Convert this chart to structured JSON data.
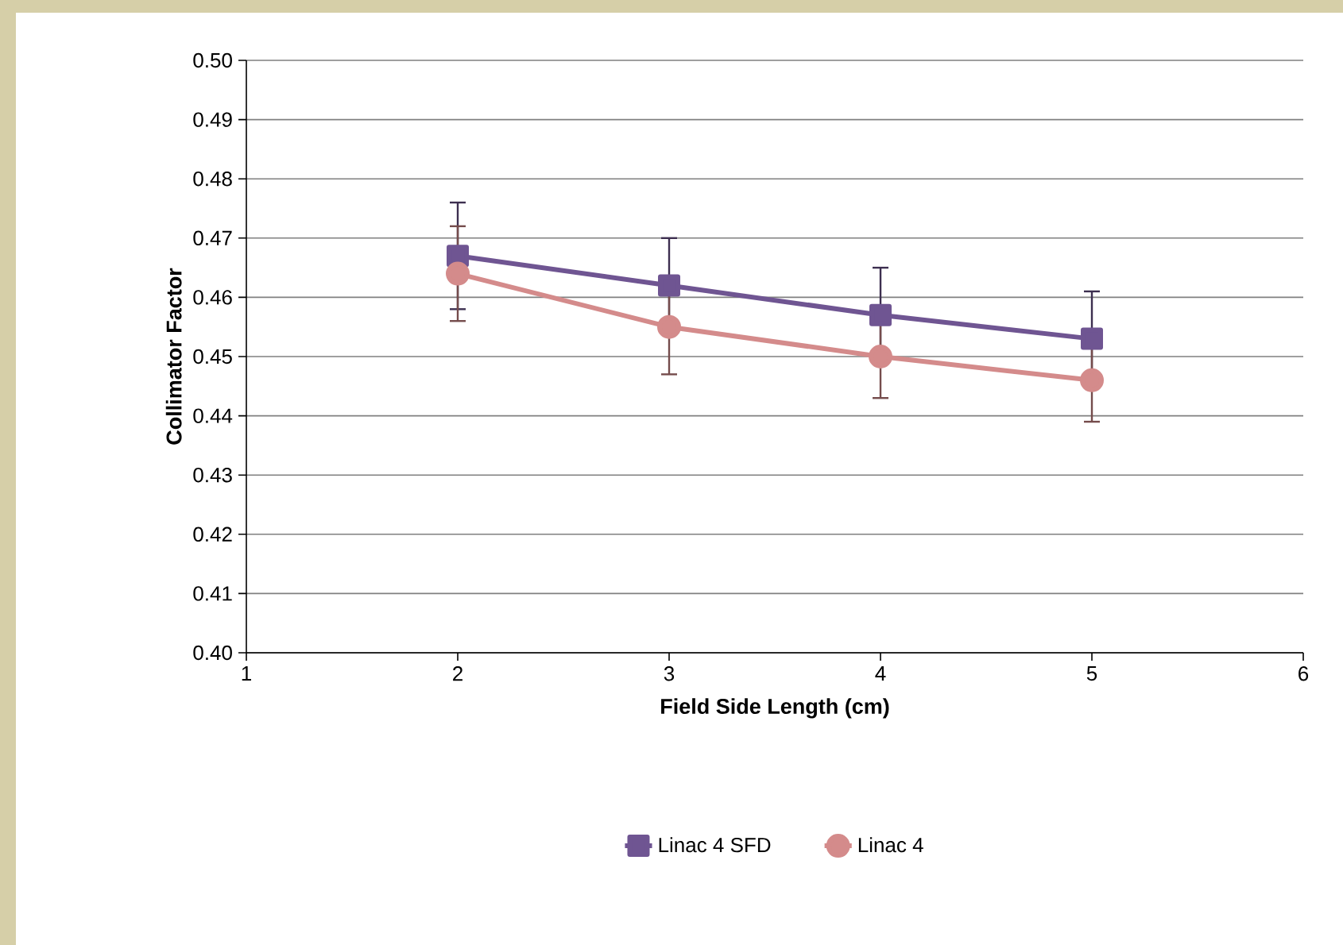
{
  "chart_data": {
    "type": "line",
    "xlabel": "Field Side Length (cm)",
    "ylabel": "Collimator Factor",
    "x": [
      2,
      3,
      4,
      5
    ],
    "series": [
      {
        "name": "Linac 4 SFD",
        "color": "#6f5592",
        "marker": "square",
        "values": [
          0.467,
          0.462,
          0.457,
          0.453
        ],
        "errors": [
          0.009,
          0.008,
          0.008,
          0.008
        ]
      },
      {
        "name": "Linac 4",
        "color": "#d48b8b",
        "marker": "circle",
        "values": [
          0.464,
          0.455,
          0.45,
          0.446
        ],
        "errors": [
          0.008,
          0.008,
          0.007,
          0.007
        ]
      }
    ],
    "xlim": [
      1,
      6
    ],
    "xticks": [
      1,
      2,
      3,
      4,
      5,
      6
    ],
    "ylim": [
      0.4,
      0.5
    ],
    "yticks": [
      {
        "value": 0.4,
        "label": "0.40"
      },
      {
        "value": 0.41,
        "label": "0.41"
      },
      {
        "value": 0.42,
        "label": "0.42"
      },
      {
        "value": 0.43,
        "label": "0.43"
      },
      {
        "value": 0.44,
        "label": "0.44"
      },
      {
        "value": 0.45,
        "label": "0.45"
      },
      {
        "value": 0.46,
        "label": "0.46"
      },
      {
        "value": 0.47,
        "label": "0.47"
      },
      {
        "value": 0.48,
        "label": "0.48"
      },
      {
        "value": 0.49,
        "label": "0.49"
      },
      {
        "value": 0.5,
        "label": "0.50"
      }
    ],
    "grid": "y",
    "legend": "bottom",
    "line_style": "solid"
  }
}
